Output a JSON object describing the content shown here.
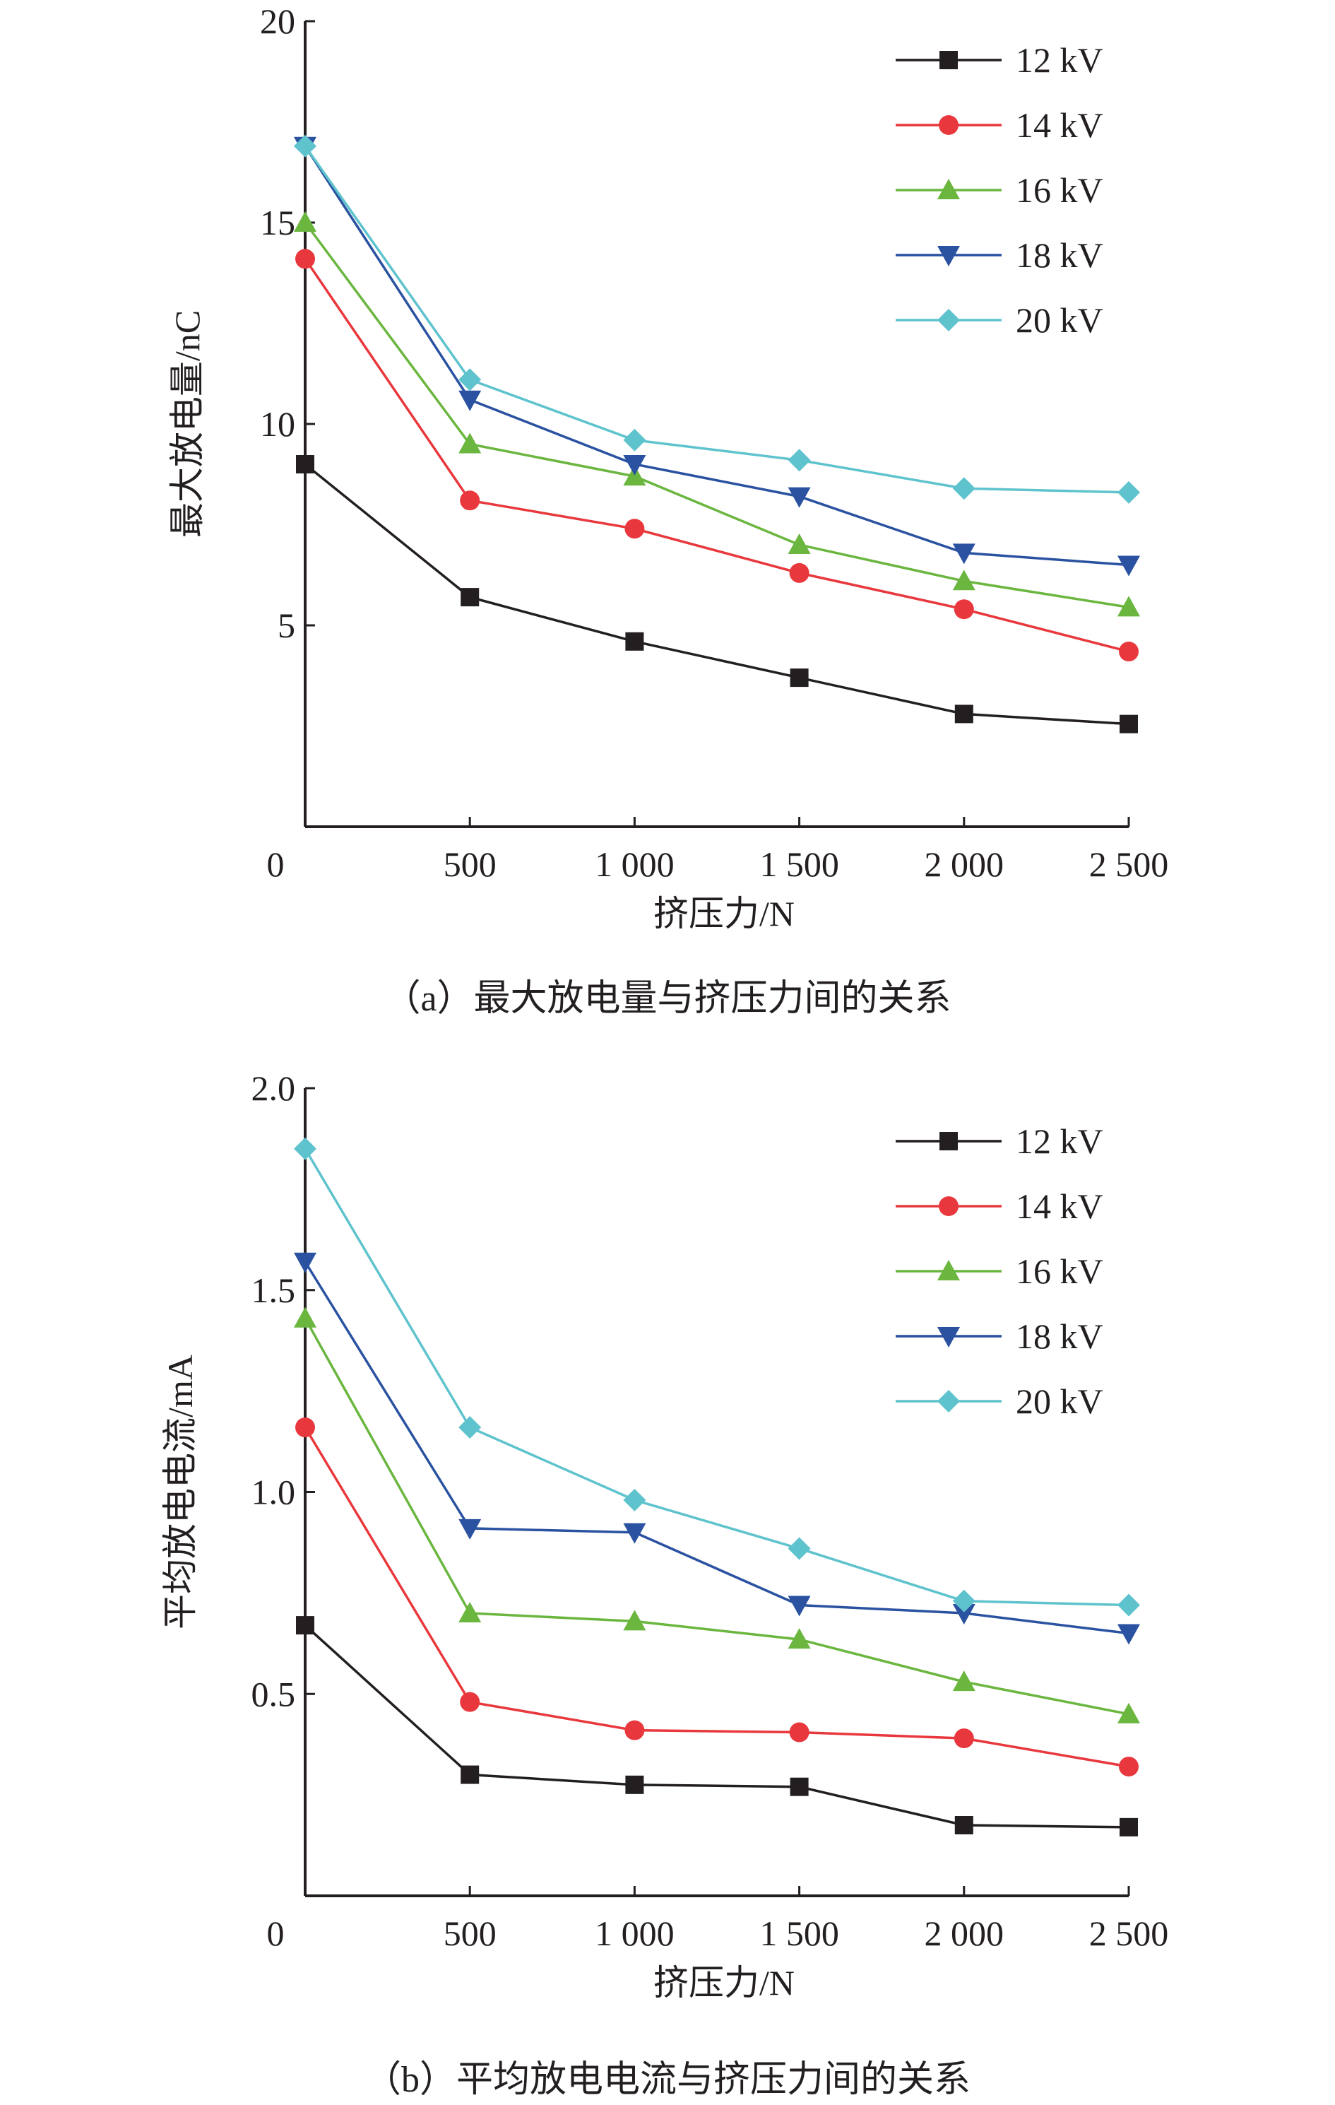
{
  "chart_data": [
    {
      "type": "line",
      "caption": "（a）最大放电量与挤压力间的关系",
      "xlabel": "挤压力/N",
      "ylabel": "最大放电量/nC",
      "x": [
        0,
        500,
        1000,
        1500,
        2000,
        2500
      ],
      "xtick_labels": [
        "0",
        "500",
        "1 000",
        "1 500",
        "2 000",
        "2 500"
      ],
      "yticks": [
        5,
        10,
        15,
        20
      ],
      "ytick_labels": [
        "5",
        "10",
        "15",
        "20"
      ],
      "ylim": [
        0,
        20
      ],
      "legend_position": "top-right",
      "grid": false,
      "series": [
        {
          "name": "12 kV",
          "color": "#231f20",
          "marker": "square",
          "values": [
            9.0,
            5.7,
            4.6,
            3.7,
            2.8,
            2.55
          ]
        },
        {
          "name": "14 kV",
          "color": "#e8383d",
          "marker": "circle",
          "values": [
            14.1,
            8.1,
            7.4,
            6.3,
            5.4,
            4.35
          ]
        },
        {
          "name": "16 kV",
          "color": "#6ab63f",
          "marker": "triangle-up",
          "values": [
            15.0,
            9.5,
            8.7,
            7.0,
            6.1,
            5.45
          ]
        },
        {
          "name": "18 kV",
          "color": "#2a52a1",
          "marker": "triangle-down",
          "values": [
            16.9,
            10.6,
            9.0,
            8.2,
            6.8,
            6.5
          ]
        },
        {
          "name": "20 kV",
          "color": "#5ec3cd",
          "marker": "diamond",
          "values": [
            16.9,
            11.1,
            9.6,
            9.1,
            8.4,
            8.3
          ]
        }
      ]
    },
    {
      "type": "line",
      "caption": "（b）平均放电电流与挤压力间的关系",
      "xlabel": "挤压力/N",
      "ylabel": "平均放电电流/mA",
      "x": [
        0,
        500,
        1000,
        1500,
        2000,
        2500
      ],
      "xtick_labels": [
        "0",
        "500",
        "1 000",
        "1 500",
        "2 000",
        "2 500"
      ],
      "yticks": [
        0.5,
        1.0,
        1.5,
        2.0
      ],
      "ytick_labels": [
        "0.5",
        "1.0",
        "1.5",
        "2.0"
      ],
      "ylim": [
        0,
        2.0
      ],
      "legend_position": "top-right",
      "grid": false,
      "series": [
        {
          "name": "12 kV",
          "color": "#231f20",
          "marker": "square",
          "values": [
            0.67,
            0.3,
            0.275,
            0.27,
            0.175,
            0.17
          ]
        },
        {
          "name": "14 kV",
          "color": "#e8383d",
          "marker": "circle",
          "values": [
            1.16,
            0.48,
            0.41,
            0.405,
            0.39,
            0.32
          ]
        },
        {
          "name": "16 kV",
          "color": "#6ab63f",
          "marker": "triangle-up",
          "values": [
            1.43,
            0.7,
            0.68,
            0.635,
            0.53,
            0.45
          ]
        },
        {
          "name": "18 kV",
          "color": "#2a52a1",
          "marker": "triangle-down",
          "values": [
            1.57,
            0.91,
            0.9,
            0.72,
            0.7,
            0.65
          ]
        },
        {
          "name": "20 kV",
          "color": "#5ec3cd",
          "marker": "diamond",
          "values": [
            1.85,
            1.16,
            0.98,
            0.86,
            0.73,
            0.72
          ]
        }
      ]
    }
  ]
}
